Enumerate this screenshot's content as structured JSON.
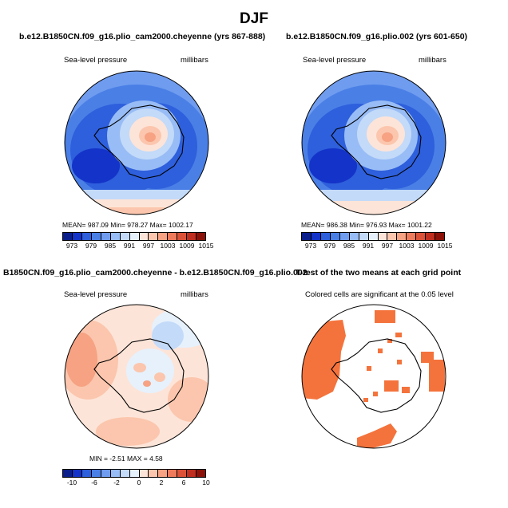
{
  "page_title": "DJF",
  "panels": [
    {
      "title": "b.e12.B1850CN.f09_g16.plio_cam2000.cheyenne (yrs 867-888)",
      "variable": "Sea-level pressure",
      "units": "millibars",
      "stats": "MEAN= 987.09   Min= 978.27   Max= 1002.17",
      "colorbar_labels": [
        "973",
        "979",
        "985",
        "991",
        "997",
        "1003",
        "1009",
        "1015"
      ],
      "colorbar_colors": [
        "#0a1e8c",
        "#1433c8",
        "#2e5fdc",
        "#4a7fe6",
        "#6f9cef",
        "#98bcf5",
        "#c3daf9",
        "#e6f1fc",
        "#fde4d8",
        "#fbc6ad",
        "#f6a283",
        "#ee7b5c",
        "#dc5238",
        "#bf2e1e",
        "#8c1108"
      ]
    },
    {
      "title": "b.e12.B1850CN.f09_g16.plio.002 (yrs 601-650)",
      "variable": "Sea-level pressure",
      "units": "millibars",
      "stats": "MEAN= 986.38   Min= 976.93   Max= 1001.22",
      "colorbar_labels": [
        "973",
        "979",
        "985",
        "991",
        "997",
        "1003",
        "1009",
        "1015"
      ],
      "colorbar_colors": [
        "#0a1e8c",
        "#1433c8",
        "#2e5fdc",
        "#4a7fe6",
        "#6f9cef",
        "#98bcf5",
        "#c3daf9",
        "#e6f1fc",
        "#fde4d8",
        "#fbc6ad",
        "#f6a283",
        "#ee7b5c",
        "#dc5238",
        "#bf2e1e",
        "#8c1108"
      ]
    },
    {
      "title": "B1850CN.f09_g16.plio_cam2000.cheyenne - b.e12.B1850CN.f09_g16.plio.002",
      "variable": "Sea-level pressure",
      "units": "millibars",
      "stats": "MIN =  -2.51  MAX =   4.58",
      "colorbar_labels": [
        "-10",
        "-6",
        "-2",
        "0",
        "2",
        "6",
        "10"
      ],
      "colorbar_colors": [
        "#0a1e8c",
        "#1433c8",
        "#2e5fdc",
        "#4a7fe6",
        "#6f9cef",
        "#98bcf5",
        "#c3daf9",
        "#e6f1fc",
        "#fde4d8",
        "#fbc6ad",
        "#f6a283",
        "#ee7b5c",
        "#dc5238",
        "#bf2e1e",
        "#8c1108"
      ]
    },
    {
      "title": "T-test of the two means at each grid point",
      "variable": "Colored cells are significant at the 0.05 level"
    }
  ],
  "colors": {
    "significant": "#f4733c",
    "land_outline": "#000000"
  }
}
